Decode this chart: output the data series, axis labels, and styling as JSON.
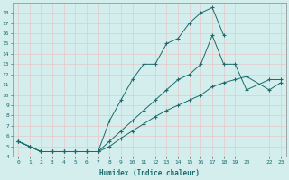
{
  "xlabel": "Humidex (Indice chaleur)",
  "bg_color": "#d4eded",
  "line_color": "#1a6b6b",
  "grid_color": "#b8d8d8",
  "xlim": [
    -0.5,
    23.5
  ],
  "ylim": [
    4,
    19
  ],
  "xticks": [
    0,
    1,
    2,
    3,
    4,
    5,
    6,
    7,
    8,
    9,
    10,
    11,
    12,
    13,
    14,
    15,
    16,
    17,
    18,
    19,
    20,
    22,
    23
  ],
  "xtick_labels": [
    "0",
    "1",
    "2",
    "3",
    "4",
    "5",
    "6",
    "7",
    "8",
    "9",
    "10",
    "11",
    "12",
    "13",
    "14",
    "15",
    "16",
    "17",
    "18",
    "19",
    "20",
    "22",
    "23"
  ],
  "yticks": [
    4,
    5,
    6,
    7,
    8,
    9,
    10,
    11,
    12,
    13,
    14,
    15,
    16,
    17,
    18
  ],
  "series1_x": [
    0,
    1,
    2,
    3,
    4,
    5,
    6,
    7,
    8,
    9,
    10,
    11,
    12,
    13,
    14,
    15,
    16,
    17,
    18
  ],
  "series1_y": [
    5.5,
    5.0,
    4.5,
    4.5,
    4.5,
    4.5,
    4.5,
    4.5,
    7.5,
    9.5,
    11.5,
    13.0,
    13.0,
    15.0,
    15.5,
    17.0,
    18.0,
    18.5,
    15.8
  ],
  "series2_x": [
    0,
    1,
    2,
    3,
    4,
    5,
    6,
    7,
    8,
    9,
    10,
    11,
    12,
    13,
    14,
    15,
    16,
    17,
    18,
    19,
    20,
    22,
    23
  ],
  "series2_y": [
    5.5,
    5.0,
    4.5,
    4.5,
    4.5,
    4.5,
    4.5,
    4.5,
    5.5,
    6.5,
    7.5,
    8.5,
    9.5,
    10.5,
    11.5,
    12.0,
    13.0,
    15.8,
    13.0,
    13.0,
    10.5,
    11.5,
    11.5
  ],
  "series3_x": [
    0,
    1,
    2,
    3,
    4,
    5,
    6,
    7,
    8,
    9,
    10,
    11,
    12,
    13,
    14,
    15,
    16,
    17,
    18,
    19,
    20,
    22,
    23
  ],
  "series3_y": [
    5.5,
    5.0,
    4.5,
    4.5,
    4.5,
    4.5,
    4.5,
    4.5,
    5.0,
    5.8,
    6.5,
    7.2,
    7.9,
    8.5,
    9.0,
    9.5,
    10.0,
    10.8,
    11.2,
    11.5,
    11.8,
    10.5,
    11.2
  ]
}
